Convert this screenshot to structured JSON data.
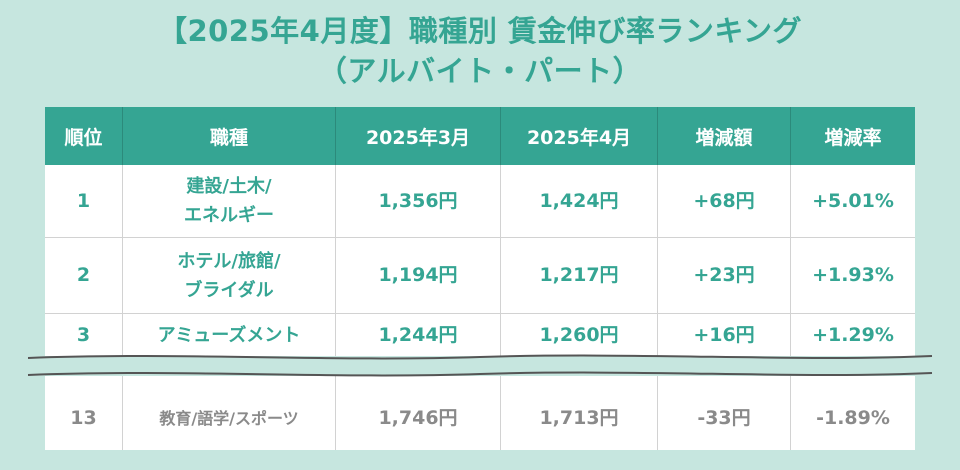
{
  "title": {
    "line1": "【2025年4月度】職種別 賃金伸び率ランキング",
    "line2": "（アルバイト・パート）"
  },
  "table": {
    "headers": [
      "順位",
      "職種",
      "2025年3月",
      "2025年4月",
      "増減額",
      "増減率"
    ],
    "rows": [
      {
        "rank": "1",
        "job_line1": "建設/土木/",
        "job_line2": "エネルギー",
        "mar": "1,356円",
        "apr": "1,424円",
        "diff": "+68円",
        "rate": "+5.01%"
      },
      {
        "rank": "2",
        "job_line1": "ホテル/旅館/",
        "job_line2": "ブライダル",
        "mar": "1,194円",
        "apr": "1,217円",
        "diff": "+23円",
        "rate": "+1.93%"
      },
      {
        "rank": "3",
        "job_line1": "アミューズメント",
        "job_line2": "",
        "mar": "1,244円",
        "apr": "1,260円",
        "diff": "+16円",
        "rate": "+1.29%"
      },
      {
        "rank": "13",
        "job_line1": "教育/語学/スポーツ",
        "job_line2": "",
        "mar": "1,746円",
        "apr": "1,713円",
        "diff": "-33円",
        "rate": "-1.89%"
      }
    ]
  },
  "colors": {
    "accent": "#35a593",
    "background": "#c6e6df",
    "muted_text": "#8a8a8a"
  }
}
